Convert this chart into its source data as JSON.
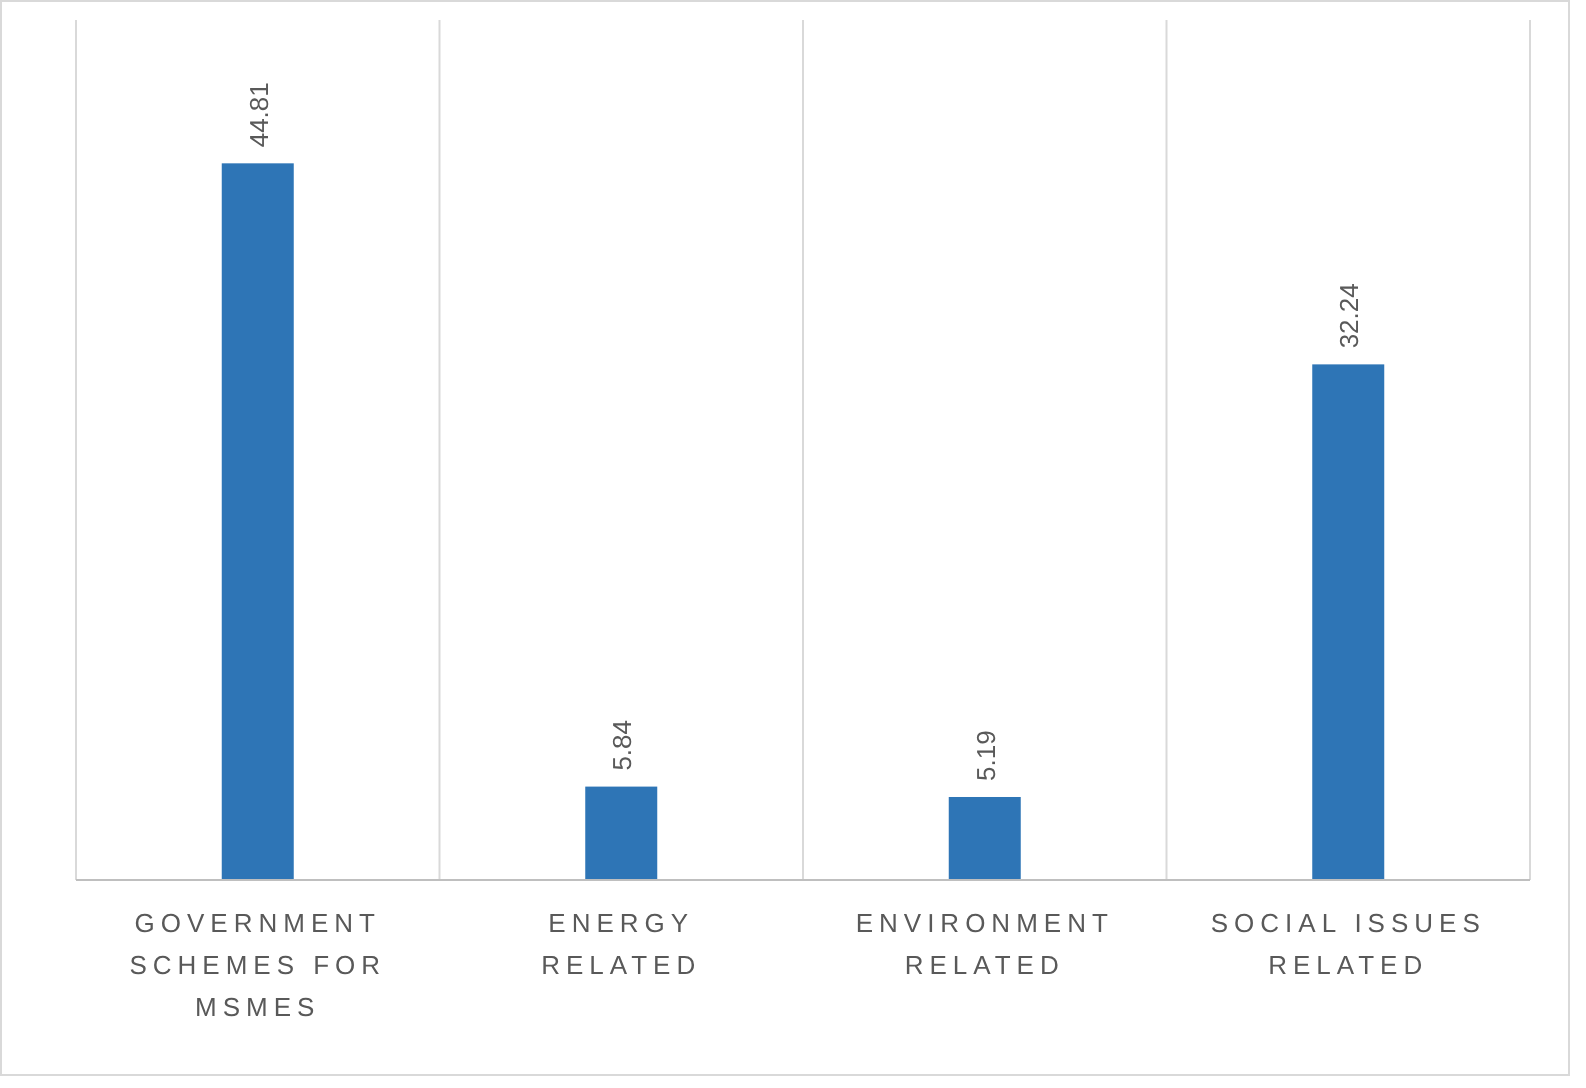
{
  "chart_data": {
    "type": "bar",
    "categories": [
      "GOVERNMENT SCHEMES FOR MSMES",
      "ENERGY RELATED",
      "ENVIRONMENT RELATED",
      "SOCIAL ISSUES RELATED"
    ],
    "values": [
      44.81,
      5.84,
      5.19,
      32.24
    ],
    "color": "#2e75b6",
    "data_labels": true,
    "grid": "x"
  }
}
